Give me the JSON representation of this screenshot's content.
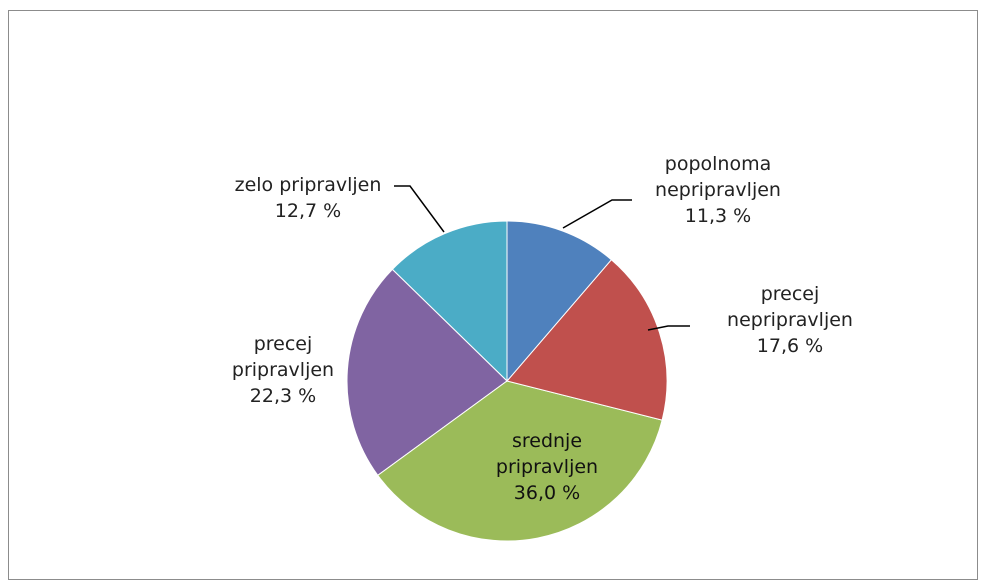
{
  "chart_data": {
    "type": "pie",
    "categories": [
      "popolnoma nepripravljen",
      "precej nepripravljen",
      "srednje pripravljen",
      "precej pripravljen",
      "zelo pripravljen"
    ],
    "values": [
      11.3,
      17.6,
      36.0,
      22.3,
      12.7
    ],
    "value_labels": [
      "11,3 %",
      "17,6 %",
      "36,0 %",
      "22,3 %",
      "12,7 %"
    ],
    "colors": [
      "#4f81bd",
      "#c0504d",
      "#9bbb59",
      "#8064a2",
      "#4bacc6"
    ]
  }
}
